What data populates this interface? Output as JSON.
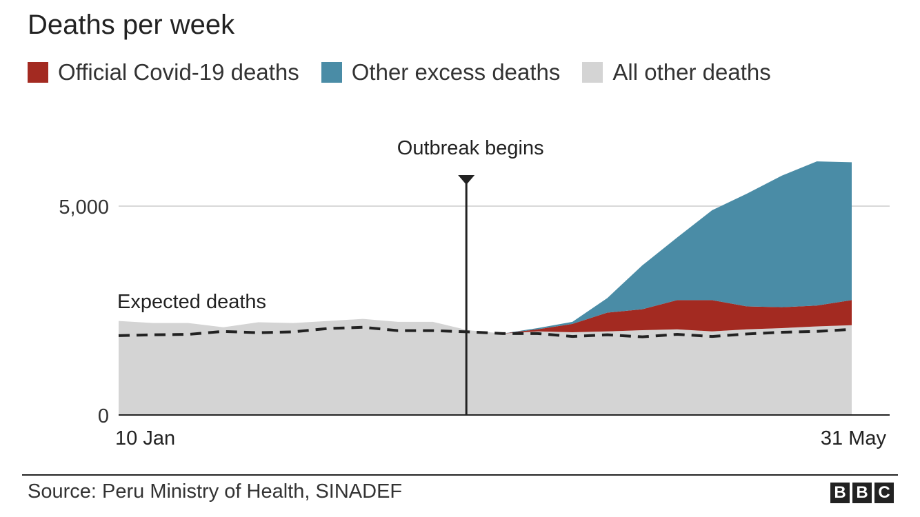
{
  "title": "Deaths per week",
  "legend": [
    {
      "label": "Official Covid-19 deaths",
      "color": "#a32a21"
    },
    {
      "label": "Other excess deaths",
      "color": "#4a8ca6"
    },
    {
      "label": "All other deaths",
      "color": "#d4d4d4"
    }
  ],
  "source": "Source: Peru Ministry of Health, SINADEF",
  "logo": [
    "B",
    "B",
    "C"
  ],
  "chart_data": {
    "type": "area",
    "x": [
      "10 Jan",
      "17 Jan",
      "24 Jan",
      "31 Jan",
      "7 Feb",
      "14 Feb",
      "21 Feb",
      "28 Feb",
      "6 Mar",
      "13 Mar",
      "20 Mar",
      "27 Mar",
      "3 Apr",
      "10 Apr",
      "17 Apr",
      "24 Apr",
      "1 May",
      "8 May",
      "15 May",
      "22 May",
      "24 May",
      "31 May"
    ],
    "x_tick_labels": [
      "10 Jan",
      "31 May"
    ],
    "y_ticks": [
      0,
      5000
    ],
    "y_tick_labels": [
      "0",
      "5,000"
    ],
    "ylim": [
      0,
      6000
    ],
    "series": [
      {
        "name": "All other deaths",
        "values": [
          2250,
          2200,
          2200,
          2100,
          2220,
          2200,
          2250,
          2300,
          2230,
          2230,
          2030,
          1950,
          2000,
          1980,
          2000,
          2030,
          2050,
          2000,
          2050,
          2080,
          2120,
          2150
        ]
      },
      {
        "name": "Official Covid-19 deaths",
        "values": [
          0,
          0,
          0,
          0,
          0,
          0,
          0,
          0,
          0,
          0,
          0,
          0,
          50,
          200,
          450,
          500,
          700,
          750,
          550,
          500,
          500,
          600
        ]
      },
      {
        "name": "Other excess deaths",
        "values": [
          0,
          0,
          0,
          0,
          0,
          0,
          0,
          0,
          0,
          0,
          0,
          0,
          30,
          50,
          350,
          1050,
          1500,
          2150,
          2700,
          3150,
          3450,
          3300
        ]
      }
    ],
    "expected": {
      "name": "Expected deaths",
      "values": [
        1900,
        1920,
        1930,
        2000,
        1970,
        1990,
        2070,
        2100,
        2020,
        2020,
        1990,
        1950,
        1950,
        1880,
        1920,
        1870,
        1930,
        1880,
        1940,
        1980,
        2000,
        2050
      ]
    },
    "annotations": [
      {
        "text": "Outbreak begins",
        "x": "20 Mar"
      },
      {
        "text": "Expected deaths"
      }
    ]
  }
}
